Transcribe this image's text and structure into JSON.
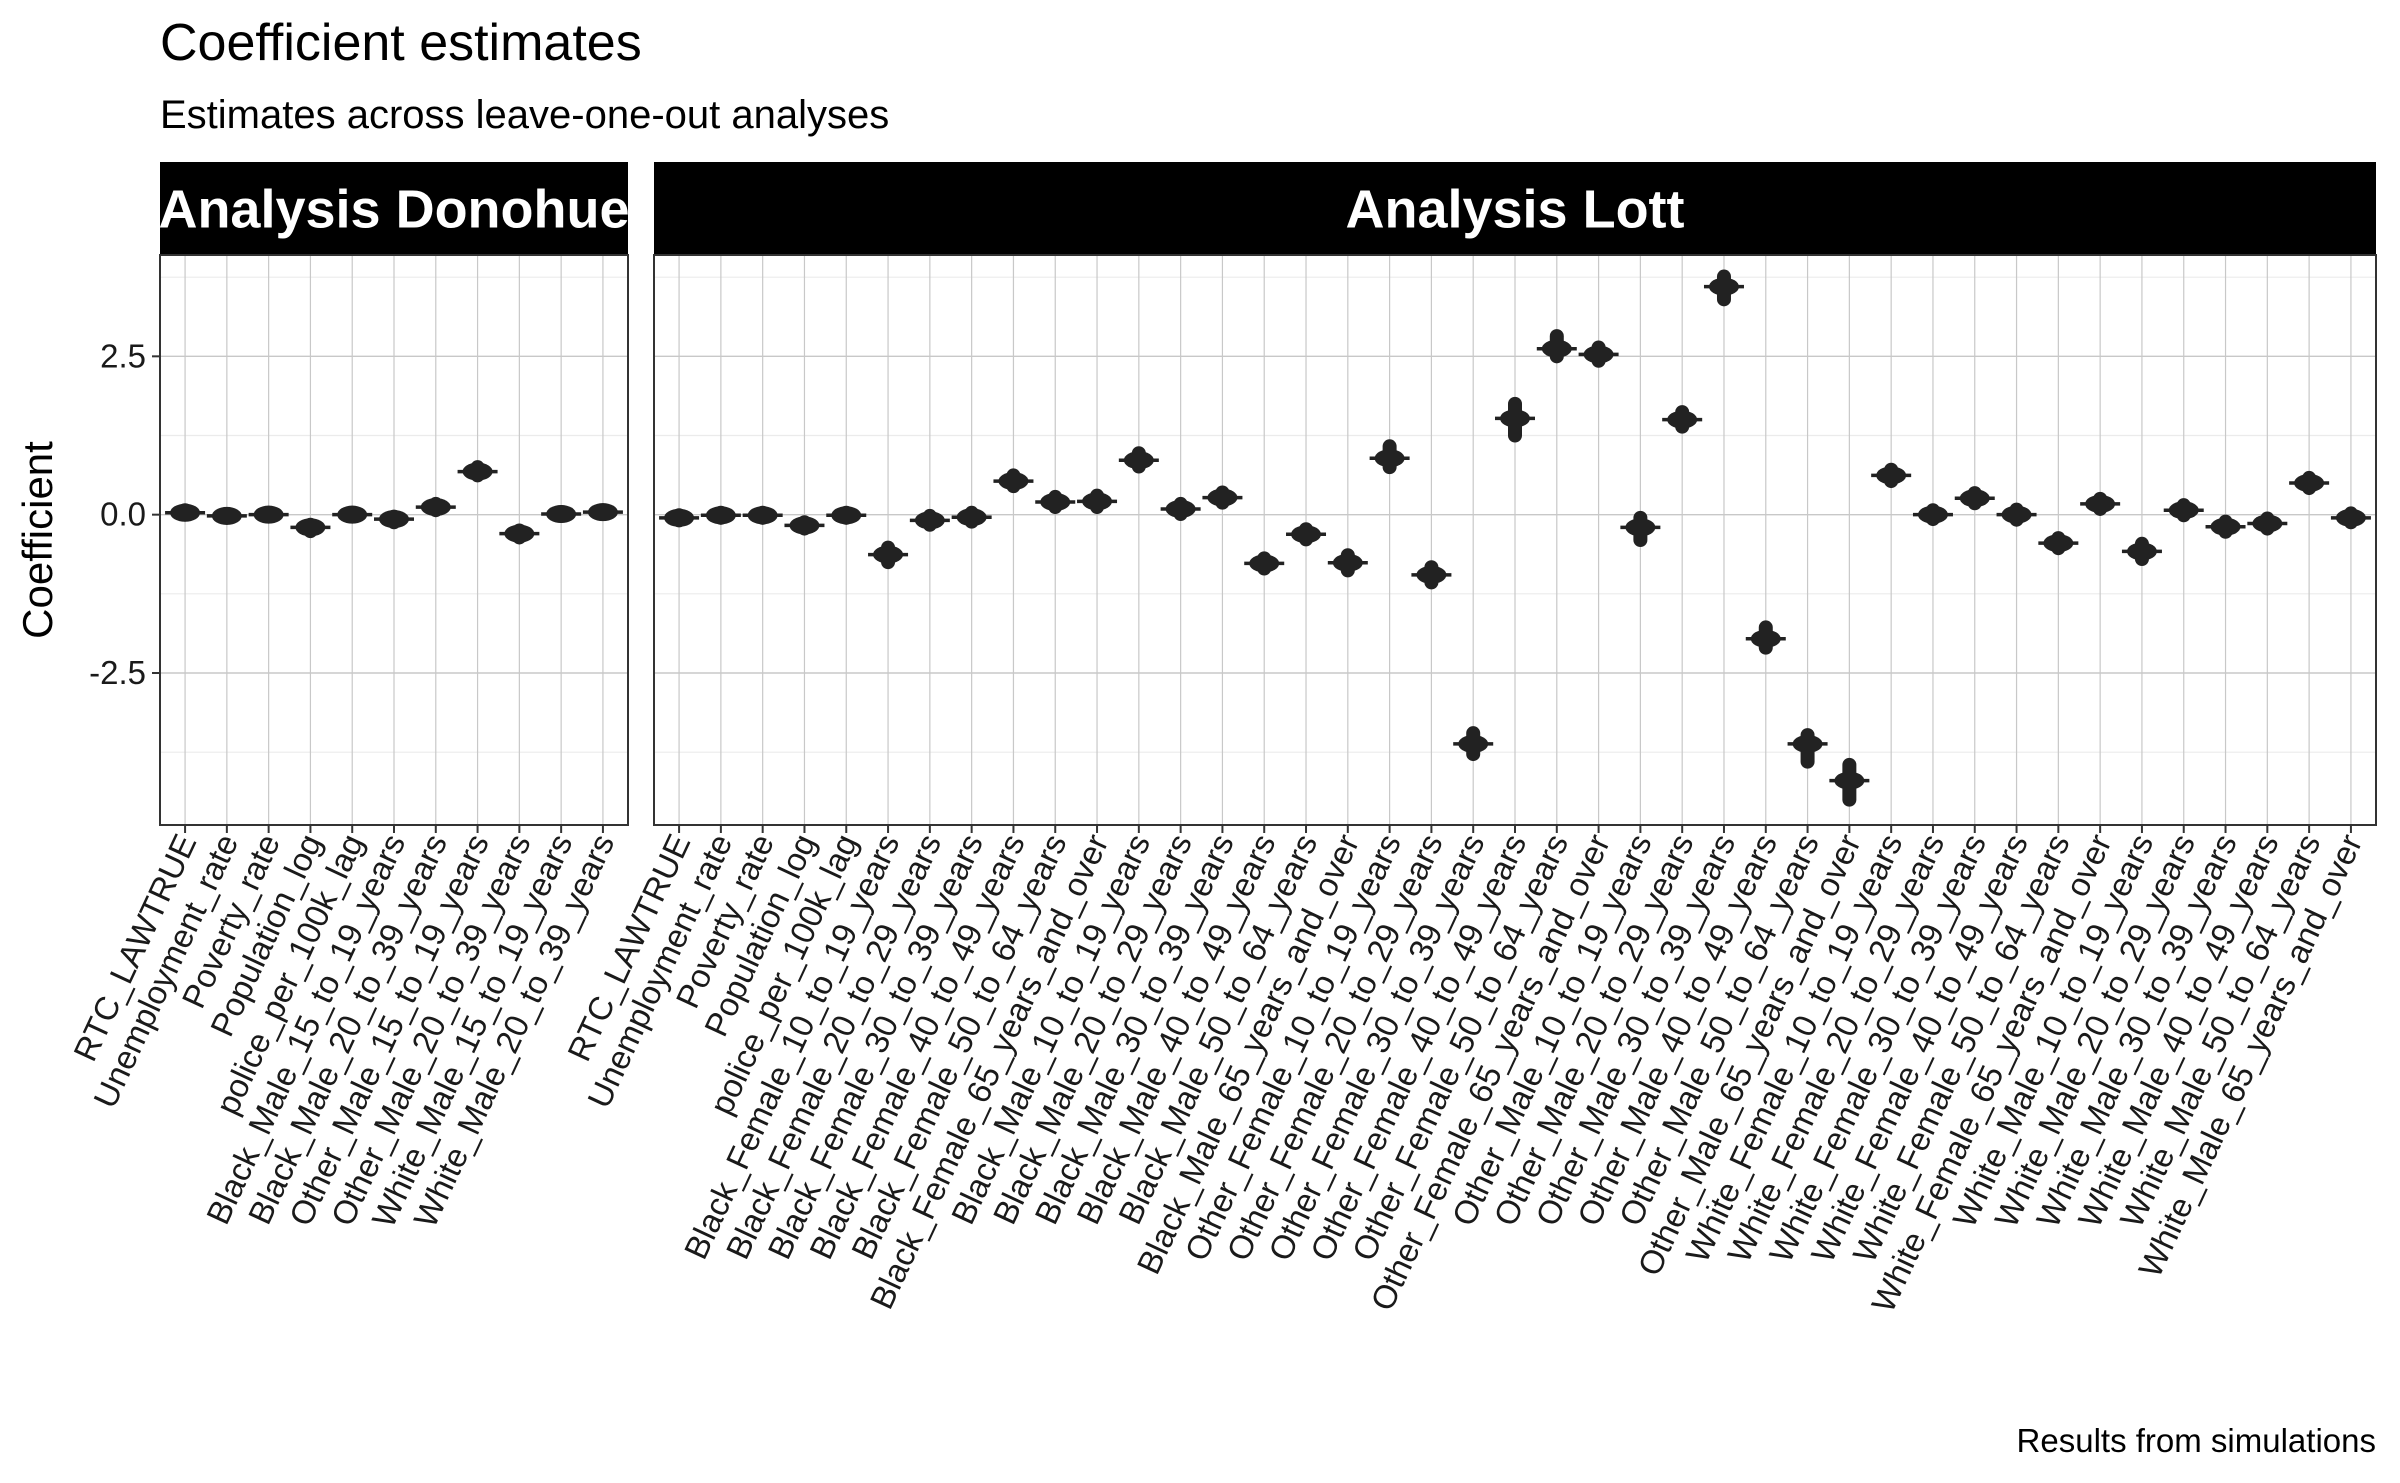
{
  "chart_data": {
    "type": "scatter",
    "title": "Coefficient estimates",
    "subtitle": "Estimates across leave-one-out analyses",
    "caption": "Results from simulations",
    "ylabel": "Coefficient",
    "xlabel": "",
    "ylim": [
      -4.9,
      4.1
    ],
    "yticks": [
      -2.5,
      0.0,
      2.5
    ],
    "ytick_labels": [
      "-2.5",
      "0.0",
      "2.5"
    ],
    "grid": true,
    "point_color": "#222222",
    "facets": [
      {
        "name": "Analysis Donohue",
        "categories": [
          "RTC_LAWTRUE",
          "Unemployment_rate",
          "Poverty_rate",
          "Population_log",
          "police_per_100k_lag",
          "Black_Male_15_to_19_years",
          "Black_Male_20_to_39_years",
          "Other_Male_15_to_19_years",
          "Other_Male_20_to_39_years",
          "White_Male_15_to_19_years",
          "White_Male_20_to_39_years"
        ],
        "values": [
          0.03,
          -0.02,
          0.0,
          -0.2,
          0.0,
          -0.07,
          0.12,
          0.68,
          -0.3,
          0.01,
          0.04
        ],
        "ranges": [
          [
            0.0,
            0.07
          ],
          [
            -0.05,
            0.01
          ],
          [
            -0.03,
            0.03
          ],
          [
            -0.26,
            -0.16
          ],
          [
            -0.03,
            0.03
          ],
          [
            -0.12,
            -0.03
          ],
          [
            0.07,
            0.17
          ],
          [
            0.62,
            0.75
          ],
          [
            -0.36,
            -0.25
          ],
          [
            -0.02,
            0.04
          ],
          [
            0.01,
            0.07
          ]
        ]
      },
      {
        "name": "Analysis Lott",
        "categories": [
          "RTC_LAWTRUE",
          "Unemployment_rate",
          "Poverty_rate",
          "Population_log",
          "police_per_100k_lag",
          "Black_Female_10_to_19_years",
          "Black_Female_20_to_29_years",
          "Black_Female_30_to_39_years",
          "Black_Female_40_to_49_years",
          "Black_Female_50_to_64_years",
          "Black_Female_65_years_and_over",
          "Black_Male_10_to_19_years",
          "Black_Male_20_to_29_years",
          "Black_Male_30_to_39_years",
          "Black_Male_40_to_49_years",
          "Black_Male_50_to_64_years",
          "Black_Male_65_years_and_over",
          "Other_Female_10_to_19_years",
          "Other_Female_20_to_29_years",
          "Other_Female_30_to_39_years",
          "Other_Female_40_to_49_years",
          "Other_Female_50_to_64_years",
          "Other_Female_65_years_and_over",
          "Other_Male_10_to_19_years",
          "Other_Male_20_to_29_years",
          "Other_Male_30_to_39_years",
          "Other_Male_40_to_49_years",
          "Other_Male_50_to_64_years",
          "Other_Male_65_years_and_over",
          "White_Female_10_to_19_years",
          "White_Female_20_to_29_years",
          "White_Female_30_to_39_years",
          "White_Female_40_to_49_years",
          "White_Female_50_to_64_years",
          "White_Female_65_years_and_over",
          "White_Male_10_to_19_years",
          "White_Male_20_to_29_years",
          "White_Male_30_to_39_years",
          "White_Male_40_to_49_years",
          "White_Male_50_to_64_years",
          "White_Male_65_years_and_over"
        ],
        "values": [
          -0.05,
          -0.01,
          -0.01,
          -0.17,
          -0.01,
          -0.63,
          -0.09,
          -0.04,
          0.53,
          0.2,
          0.21,
          0.86,
          0.09,
          0.27,
          -0.77,
          -0.31,
          -0.76,
          0.89,
          -0.95,
          -3.62,
          1.52,
          2.62,
          2.53,
          -0.2,
          1.5,
          3.6,
          -1.96,
          -3.62,
          -4.2,
          0.62,
          0.0,
          0.26,
          0.0,
          -0.45,
          0.17,
          -0.58,
          0.07,
          -0.19,
          -0.14,
          0.5,
          -0.05
        ],
        "ranges": [
          [
            -0.09,
            -0.01
          ],
          [
            -0.05,
            0.03
          ],
          [
            -0.05,
            0.03
          ],
          [
            -0.22,
            -0.12
          ],
          [
            -0.05,
            0.03
          ],
          [
            -0.75,
            -0.52
          ],
          [
            -0.16,
            -0.02
          ],
          [
            -0.11,
            0.03
          ],
          [
            0.45,
            0.62
          ],
          [
            0.12,
            0.28
          ],
          [
            0.12,
            0.3
          ],
          [
            0.76,
            0.97
          ],
          [
            0.01,
            0.17
          ],
          [
            0.19,
            0.35
          ],
          [
            -0.85,
            -0.69
          ],
          [
            -0.39,
            -0.23
          ],
          [
            -0.88,
            -0.64
          ],
          [
            0.75,
            1.08
          ],
          [
            -1.07,
            -0.83
          ],
          [
            -3.78,
            -3.45
          ],
          [
            1.25,
            1.75
          ],
          [
            2.5,
            2.82
          ],
          [
            2.43,
            2.64
          ],
          [
            -0.4,
            -0.05
          ],
          [
            1.39,
            1.62
          ],
          [
            3.4,
            3.76
          ],
          [
            -2.1,
            -1.78
          ],
          [
            -3.9,
            -3.48
          ],
          [
            -4.5,
            -3.95
          ],
          [
            0.53,
            0.71
          ],
          [
            -0.07,
            0.07
          ],
          [
            0.18,
            0.34
          ],
          [
            -0.08,
            0.08
          ],
          [
            -0.53,
            -0.37
          ],
          [
            0.09,
            0.25
          ],
          [
            -0.7,
            -0.46
          ],
          [
            -0.01,
            0.15
          ],
          [
            -0.27,
            -0.11
          ],
          [
            -0.22,
            -0.06
          ],
          [
            0.42,
            0.58
          ],
          [
            -0.12,
            0.02
          ]
        ]
      }
    ]
  }
}
